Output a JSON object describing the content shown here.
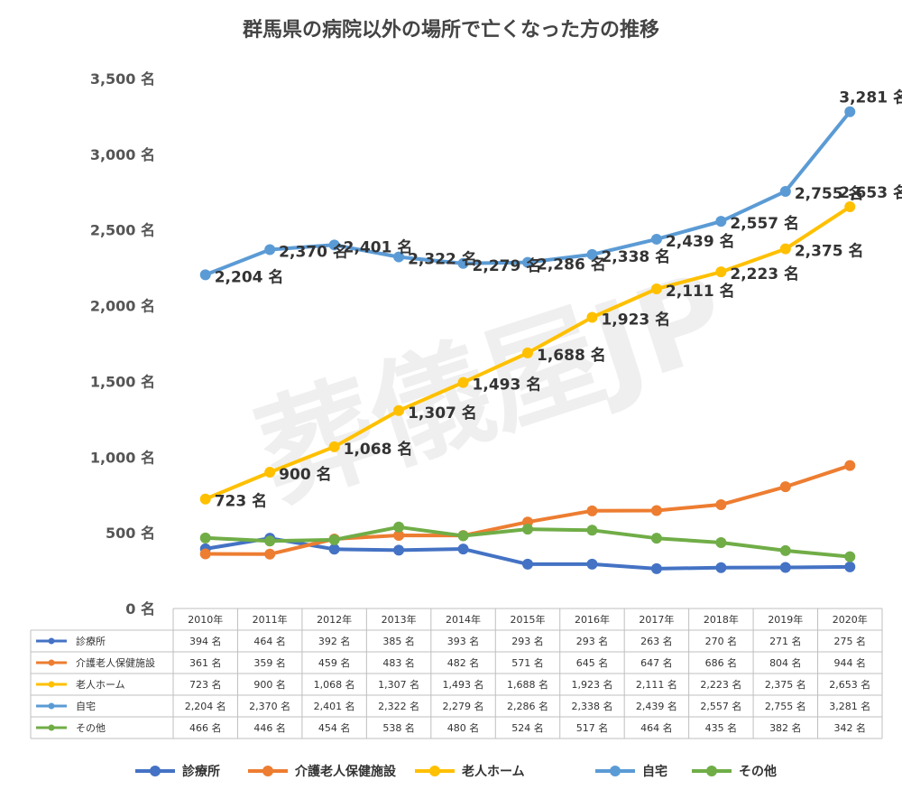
{
  "chart_data": {
    "type": "line",
    "title": "群馬県の病院以外の場所で亡くなった方の推移",
    "watermark": "葬儀屋JP",
    "unit": "名",
    "ylim": [
      0,
      3500
    ],
    "yticks": [
      0,
      500,
      1000,
      1500,
      2000,
      2500,
      3000,
      3500
    ],
    "ytick_labels": [
      "0 名",
      "500 名",
      "1,000 名",
      "1,500 名",
      "2,000 名",
      "2,500 名",
      "3,000 名",
      "3,500 名"
    ],
    "categories": [
      "2010年",
      "2011年",
      "2012年",
      "2013年",
      "2014年",
      "2015年",
      "2016年",
      "2017年",
      "2018年",
      "2019年",
      "2020年"
    ],
    "series": [
      {
        "name": "診療所",
        "color": "#4472C4",
        "show_labels": false,
        "values": [
          394,
          464,
          392,
          385,
          393,
          293,
          293,
          263,
          270,
          271,
          275
        ],
        "cells": [
          "394 名",
          "464 名",
          "392 名",
          "385 名",
          "393 名",
          "293 名",
          "293 名",
          "263 名",
          "270 名",
          "271 名",
          "275 名"
        ]
      },
      {
        "name": "介護老人保健施設",
        "color": "#ED7D31",
        "show_labels": false,
        "values": [
          361,
          359,
          459,
          483,
          482,
          571,
          645,
          647,
          686,
          804,
          944
        ],
        "cells": [
          "361 名",
          "359 名",
          "459 名",
          "483 名",
          "482 名",
          "571 名",
          "645 名",
          "647 名",
          "686 名",
          "804 名",
          "944 名"
        ]
      },
      {
        "name": "老人ホーム",
        "color": "#FFC000",
        "show_labels": true,
        "values": [
          723,
          900,
          1068,
          1307,
          1493,
          1688,
          1923,
          2111,
          2223,
          2375,
          2653
        ],
        "cells": [
          "723 名",
          "900 名",
          "1,068 名",
          "1,307 名",
          "1,493 名",
          "1,688 名",
          "1,923 名",
          "2,111 名",
          "2,223 名",
          "2,375 名",
          "2,653 名"
        ]
      },
      {
        "name": "自宅",
        "color": "#5B9BD5",
        "show_labels": true,
        "values": [
          2204,
          2370,
          2401,
          2322,
          2279,
          2286,
          2338,
          2439,
          2557,
          2755,
          3281
        ],
        "cells": [
          "2,204 名",
          "2,370 名",
          "2,401 名",
          "2,322 名",
          "2,279 名",
          "2,286 名",
          "2,338 名",
          "2,439 名",
          "2,557 名",
          "2,755 名",
          "3,281 名"
        ]
      },
      {
        "name": "その他",
        "color": "#70AD47",
        "show_labels": false,
        "values": [
          466,
          446,
          454,
          538,
          480,
          524,
          517,
          464,
          435,
          382,
          342
        ],
        "cells": [
          "466 名",
          "446 名",
          "454 名",
          "538 名",
          "480 名",
          "524 名",
          "517 名",
          "464 名",
          "435 名",
          "382 名",
          "342 名"
        ]
      }
    ]
  }
}
